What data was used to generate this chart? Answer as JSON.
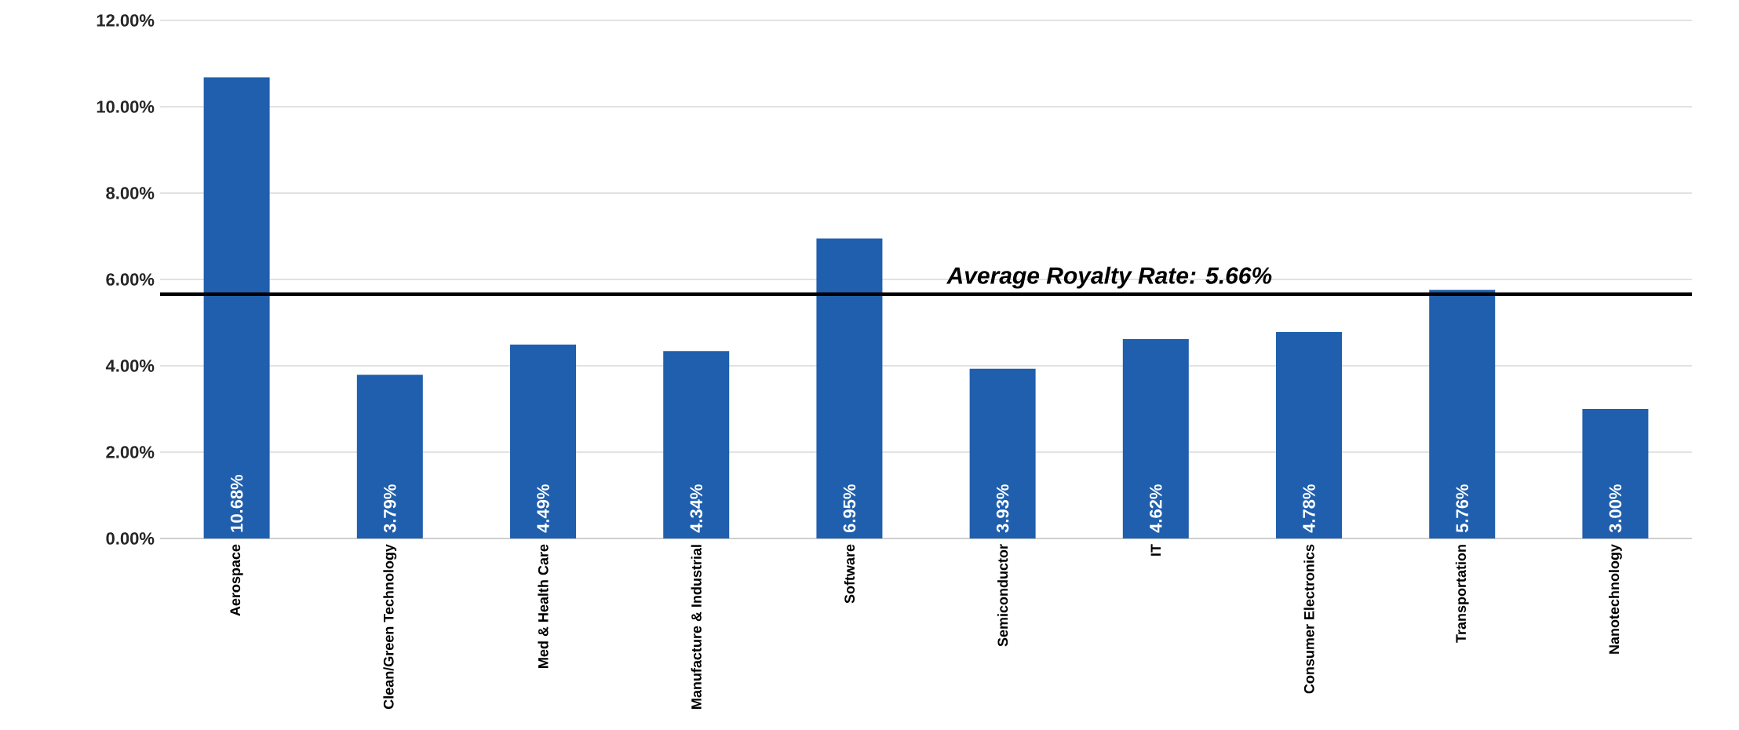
{
  "chart_data": {
    "type": "bar",
    "categories": [
      "Aerospace",
      "Clean/Green Technology",
      "Med & Health Care",
      "Manufacture & Industrial",
      "Software",
      "Semiconductor",
      "IT",
      "Consumer Electronics",
      "Transportation",
      "Nanotechnology"
    ],
    "values": [
      10.68,
      3.79,
      4.49,
      4.34,
      6.95,
      3.93,
      4.62,
      4.78,
      5.76,
      3.0
    ],
    "value_labels": [
      "10.68%",
      "3.79%",
      "4.49%",
      "4.34%",
      "6.95%",
      "3.93%",
      "4.62%",
      "4.78%",
      "5.76%",
      "3.00%"
    ],
    "color": "#1f5fad",
    "ylim": [
      0,
      12
    ],
    "yticks": [
      {
        "value": 0,
        "label": "0.00%"
      },
      {
        "value": 2,
        "label": "2.00%"
      },
      {
        "value": 4,
        "label": "4.00%"
      },
      {
        "value": 6,
        "label": "6.00%"
      },
      {
        "value": 8,
        "label": "8.00%"
      },
      {
        "value": 10,
        "label": "10.00%"
      },
      {
        "value": 12,
        "label": "12.00%"
      }
    ],
    "grid": "y",
    "ref_lines": [
      {
        "axis": "y",
        "value": 5.66,
        "label": "Average Royalty Rate: 5.66%",
        "color": "#000000"
      }
    ]
  }
}
